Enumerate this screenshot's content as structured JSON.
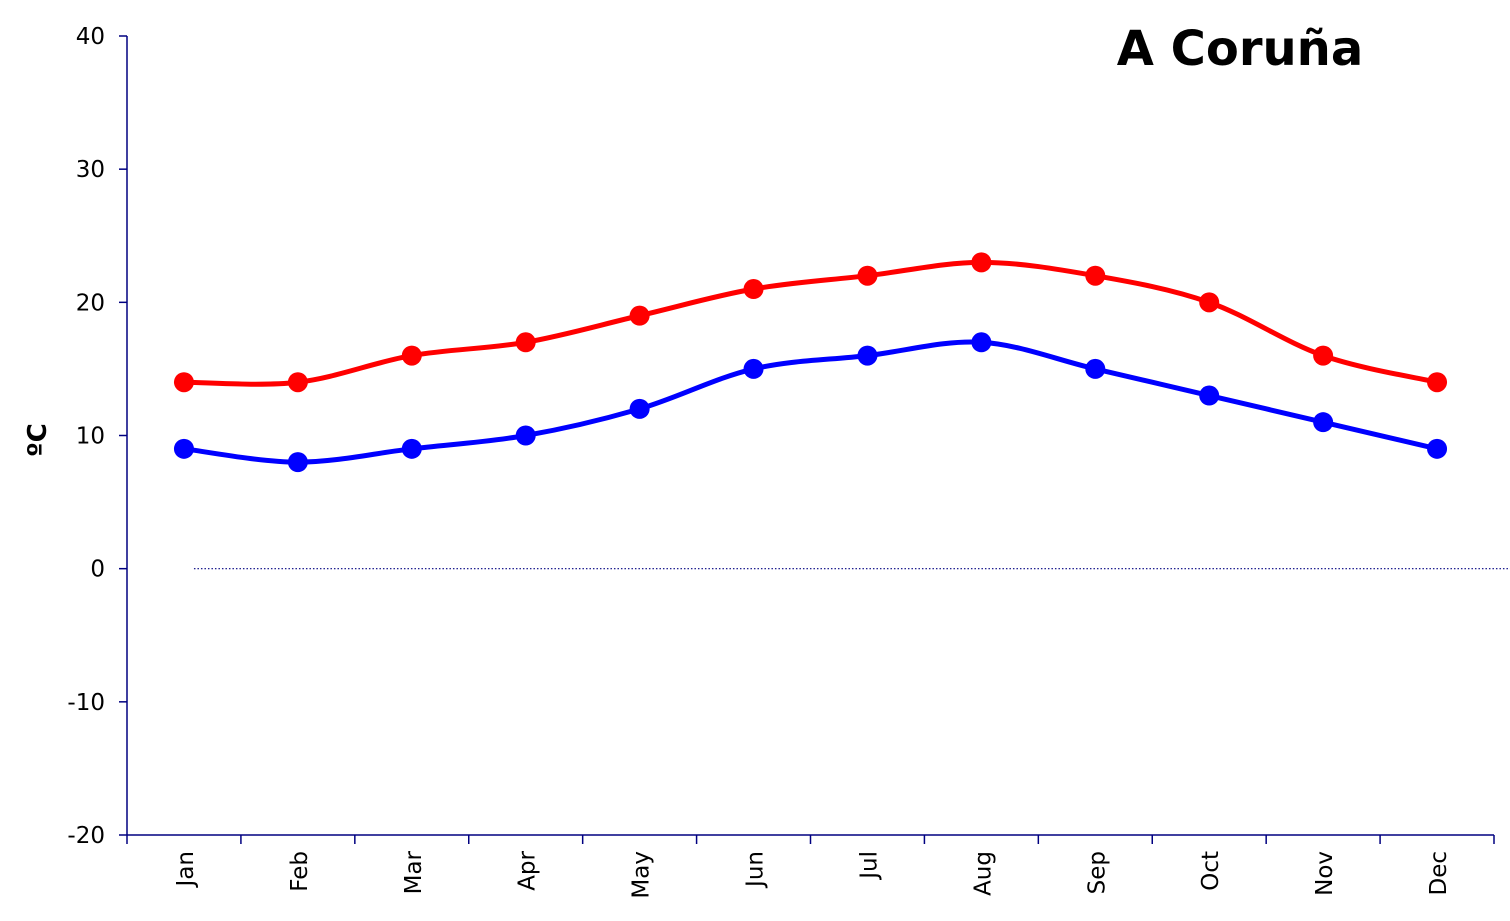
{
  "chart_data": {
    "type": "line",
    "title": "A Coruña",
    "xlabel": "",
    "ylabel": "ºC",
    "categories": [
      "Jan",
      "Feb",
      "Mar",
      "Apr",
      "May",
      "Jun",
      "Jul",
      "Aug",
      "Sep",
      "Oct",
      "Nov",
      "Dec"
    ],
    "ylim": [
      -20,
      40
    ],
    "yticks": [
      "-20",
      "-10",
      "0",
      "10",
      "20",
      "30",
      "40"
    ],
    "series": [
      {
        "color": "#ff0000",
        "values": [
          14,
          14,
          16,
          17,
          19,
          21,
          22,
          23,
          22,
          20,
          16,
          14
        ]
      },
      {
        "color": "#0000ff",
        "values": [
          9,
          8,
          9,
          10,
          12,
          15,
          16,
          17,
          15,
          13,
          11,
          9
        ]
      }
    ],
    "reference_line": {
      "y": 0,
      "style": "dotted",
      "color": "#000080"
    },
    "axis_color": "#000080",
    "grid": false,
    "legend": "none"
  }
}
